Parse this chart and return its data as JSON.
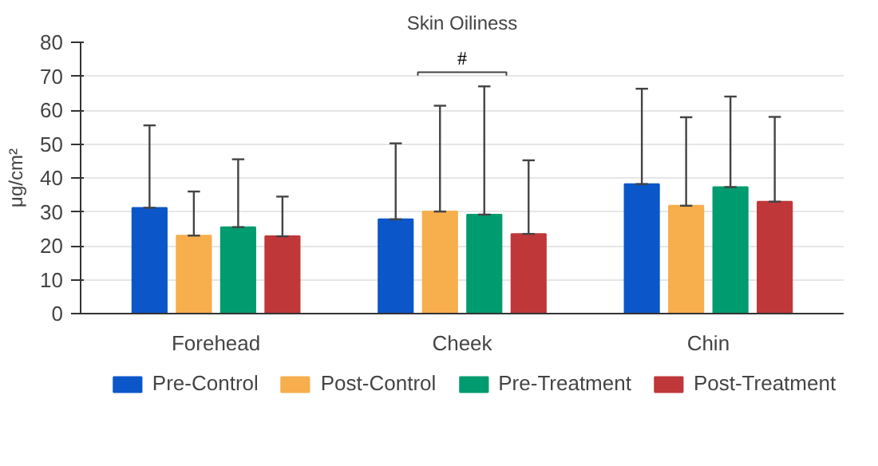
{
  "chart_data": {
    "type": "bar",
    "title": "Skin Oiliness",
    "ylabel": "μg/cm²",
    "categories": [
      "Forehead",
      "Cheek",
      "Chin"
    ],
    "series": [
      {
        "name": "Pre-Control",
        "color": "#0b57c9",
        "values": [
          31.2,
          27.8,
          38.2
        ],
        "errors": [
          [
            31.2,
            55.5
          ],
          [
            27.8,
            50.2
          ],
          [
            38.2,
            66.3
          ]
        ]
      },
      {
        "name": "Post-Control",
        "color": "#f7ae4c",
        "values": [
          23,
          30.1,
          31.8
        ],
        "errors": [
          [
            23,
            36
          ],
          [
            30.1,
            61.3
          ],
          [
            31.8,
            57.9
          ]
        ]
      },
      {
        "name": "Pre-Treatment",
        "color": "#009b6e",
        "values": [
          25.5,
          29.2,
          37.3
        ],
        "errors": [
          [
            25.5,
            45.5
          ],
          [
            29.2,
            67
          ],
          [
            37.3,
            64
          ]
        ]
      },
      {
        "name": "Post-Treatment",
        "color": "#c0373a",
        "values": [
          22.8,
          23.5,
          33
        ],
        "errors": [
          [
            22.8,
            34.5
          ],
          [
            23.5,
            45.2
          ],
          [
            33,
            58
          ]
        ]
      }
    ],
    "annotations": [
      "#"
    ],
    "ylim": [
      0,
      80
    ],
    "yticks": [
      0,
      10,
      20,
      30,
      40,
      50,
      60,
      70,
      80
    ],
    "grid": "y",
    "legend": "bottom"
  }
}
